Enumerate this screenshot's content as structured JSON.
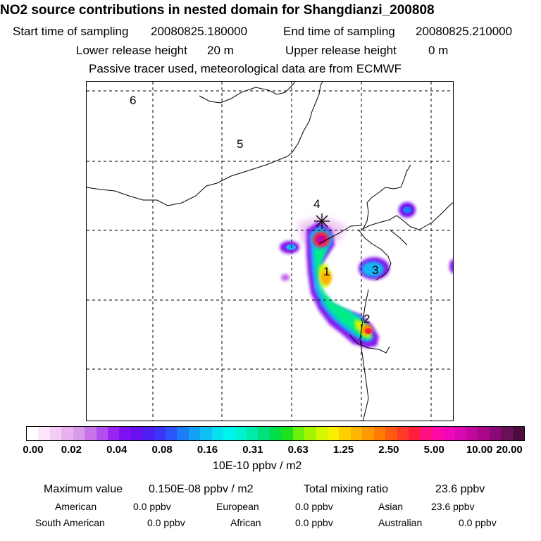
{
  "title": "NO2 source contributions in nested domain for Shangdianzi_200808",
  "header": {
    "start_label": "Start time of sampling",
    "start_value": "20080825.180000",
    "end_label": "End time of sampling",
    "end_value": "20080825.210000",
    "lower_label": "Lower release height",
    "lower_value": "20 m",
    "upper_label": "Upper release height",
    "upper_value": "0 m",
    "note": "Passive tracer used, meteorological data are from ECMWF"
  },
  "map": {
    "site_labels": [
      "1",
      "2",
      "3",
      "4",
      "5",
      "6"
    ]
  },
  "colorbar": {
    "ticks": [
      "0.00",
      "0.02",
      "0.04",
      "0.08",
      "0.16",
      "0.31",
      "0.63",
      "1.25",
      "2.50",
      "5.00",
      "10.00",
      "20.00"
    ],
    "unit": "10E-10 ppbv / m2",
    "colors": [
      "#ffffff",
      "#fbe6fb",
      "#f4cdf6",
      "#e9b1f0",
      "#d79be8",
      "#c873e8",
      "#b24ff0",
      "#9a24f2",
      "#8010f4",
      "#6a10f0",
      "#4e1ff4",
      "#3c34f8",
      "#2c55fa",
      "#1c7cf6",
      "#14a0f4",
      "#10bff2",
      "#08dff0",
      "#00f4ee",
      "#00f2d0",
      "#00eaa8",
      "#00e07c",
      "#00de48",
      "#1ce21c",
      "#6af00a",
      "#a4f600",
      "#d4f800",
      "#f8f000",
      "#ffd000",
      "#ffb600",
      "#ff9a00",
      "#ff7c00",
      "#ff5a10",
      "#ff3a28",
      "#ff1e3c",
      "#ff1280",
      "#ff0aa8",
      "#f008b8",
      "#d808b0",
      "#c0089c",
      "#a80888",
      "#8a0878",
      "#6a1058",
      "#4c0c3c"
    ]
  },
  "summary": {
    "max_label": "Maximum value",
    "max_value": "0.150E-08 ppbv / m2",
    "total_label": "Total mixing ratio",
    "total_value": "23.6 ppbv",
    "regions": [
      {
        "name": "American",
        "value": "0.0 ppbv"
      },
      {
        "name": "European",
        "value": "0.0 ppbv"
      },
      {
        "name": "Asian",
        "value": "23.6 ppbv"
      },
      {
        "name": "South American",
        "value": "0.0 ppbv"
      },
      {
        "name": "African",
        "value": "0.0 ppbv"
      },
      {
        "name": "Australian",
        "value": "0.0 ppbv"
      }
    ]
  }
}
